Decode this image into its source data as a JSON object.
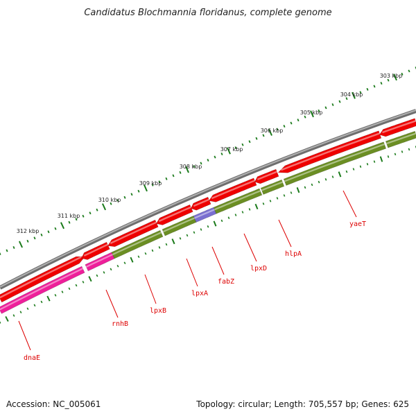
{
  "title": "Candidatus Blochmannia floridanus, complete genome",
  "footer": {
    "accession": "Accession: NC_005061",
    "summary": "Topology: circular; Length: 705,557 bp; Genes: 625"
  },
  "colors": {
    "backbone": "#8a8a8a",
    "forward_cds": "#ee0000",
    "reverse_cds": "#6b8e23",
    "rnh": "#ee1f9a",
    "fab": "#7a6fd0",
    "ticks": "#1a7a1a",
    "labels": "#dd0000"
  },
  "scale_labels": [
    "303 kbp",
    "304 kbp",
    "305 kbp",
    "306 kbp",
    "307 kbp",
    "308 kbp",
    "309 kbp",
    "310 kbp",
    "311 kbp",
    "312 kbp"
  ],
  "genes": [
    {
      "name": "yaeT"
    },
    {
      "name": "hlpA"
    },
    {
      "name": "lpxD"
    },
    {
      "name": "fabZ"
    },
    {
      "name": "lpxA"
    },
    {
      "name": "lpxB"
    },
    {
      "name": "rnhB"
    },
    {
      "name": "dnaE"
    }
  ]
}
